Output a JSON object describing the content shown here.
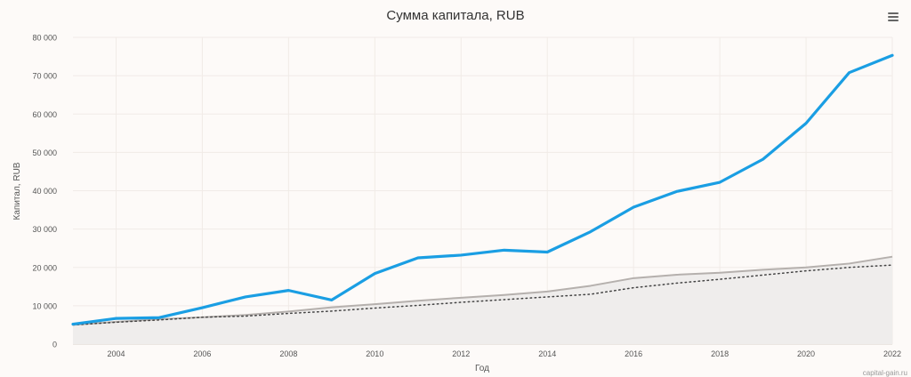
{
  "menu": {
    "icon": "hamburger-menu-icon"
  },
  "credits": "capital-gain.ru",
  "colors": {
    "background": "#fdfaf8",
    "grid": "#f1ebe7",
    "main_line": "#1a9ee3",
    "gray_line": "#b5b0ad",
    "gray_fill": "#efedec",
    "dotted_line": "#444444",
    "title": "#333333",
    "axis_text": "#555555"
  },
  "chart_data": {
    "type": "line",
    "title": "Сумма капитала, RUB",
    "xlabel": "Год",
    "ylabel": "Капитал, RUB",
    "xlim": [
      2003,
      2022
    ],
    "ylim": [
      0,
      80000
    ],
    "x_ticks": [
      "2004",
      "2006",
      "2008",
      "2010",
      "2012",
      "2014",
      "2016",
      "2018",
      "2020",
      "2022"
    ],
    "y_ticks": [
      "0",
      "10 000",
      "20 000",
      "30 000",
      "40 000",
      "50 000",
      "60 000",
      "70 000",
      "80 000"
    ],
    "grid": true,
    "legend": "none",
    "x": [
      2003,
      2004,
      2005,
      2006,
      2007,
      2008,
      2009,
      2010,
      2011,
      2012,
      2013,
      2014,
      2015,
      2016,
      2017,
      2018,
      2019,
      2020,
      2021,
      2022
    ],
    "series": [
      {
        "style": "solid-blue-thick",
        "values": [
          5200,
          6700,
          6900,
          9500,
          12300,
          14000,
          11500,
          18400,
          22500,
          23200,
          24500,
          24000,
          29300,
          35700,
          39800,
          42200,
          48200,
          57600,
          70800,
          75300
        ]
      },
      {
        "style": "gray-area",
        "values": [
          5000,
          5800,
          6500,
          7000,
          7600,
          8500,
          9600,
          10400,
          11300,
          12100,
          12800,
          13700,
          15200,
          17200,
          18100,
          18600,
          19400,
          20000,
          21000,
          22800
        ]
      },
      {
        "style": "dotted-dark",
        "values": [
          5000,
          5700,
          6300,
          7000,
          7300,
          8000,
          8600,
          9400,
          10100,
          10900,
          11600,
          12300,
          13000,
          14700,
          15900,
          16900,
          18000,
          19100,
          20000,
          20600
        ]
      }
    ]
  }
}
